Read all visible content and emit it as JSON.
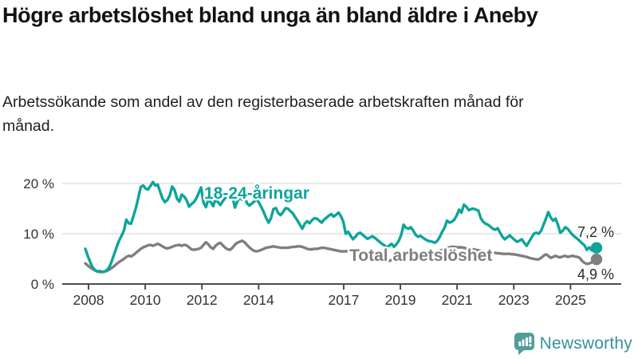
{
  "header": {
    "title": "Högre arbetslöshet bland unga än bland äldre i Aneby",
    "subtitle": "Arbetssökande som andel av den registerbaserade arbetskraften månad för månad."
  },
  "footer": {
    "brand": "Newsworthy",
    "brand_icon": "bar-chart-speech-bubble",
    "brand_icon_color": "#4f9e99",
    "brand_text_color": "#35929a"
  },
  "chart_data": {
    "type": "line",
    "title": "Högre arbetslöshet bland unga än bland äldre i Aneby",
    "subtitle": "Arbetssökande som andel av den registerbaserade arbetskraften månad för månad.",
    "x_frequency": "monthly",
    "x_start": "2008-01",
    "x_end": "2025-09",
    "x_tick_labels": [
      "2008",
      "2010",
      "2012",
      "2014",
      "2017",
      "2019",
      "2021",
      "2023",
      "2025"
    ],
    "x_tick_years": [
      2008,
      2010,
      2012,
      2014,
      2017,
      2019,
      2021,
      2023,
      2025
    ],
    "ylim": [
      0,
      21
    ],
    "yticks": [
      {
        "value": 0,
        "label": "0 %"
      },
      {
        "value": 10,
        "label": "10 %"
      },
      {
        "value": 20,
        "label": "20 %"
      }
    ],
    "grid": "horizontal",
    "legend_position": "inline-labels",
    "axis_color": "#4d4d4d",
    "grid_color": "#d9d9d9",
    "tick_text_color": "#333333",
    "end_label_color": "#2b2b2b",
    "series": [
      {
        "name": "18-24-åringar",
        "color": "#0da59a",
        "end_label": "7,2 %",
        "end_value": 7.2,
        "values": [
          7.0,
          5.6,
          4.4,
          3.3,
          2.8,
          2.5,
          2.6,
          2.4,
          2.5,
          2.8,
          3.4,
          4.6,
          6.0,
          7.4,
          8.6,
          9.6,
          10.6,
          12.8,
          12.1,
          12.0,
          13.6,
          15.2,
          17.2,
          19.3,
          19.6,
          19.0,
          18.8,
          19.5,
          20.3,
          19.6,
          19.8,
          18.4,
          17.0,
          16.3,
          16.7,
          17.6,
          19.4,
          18.7,
          17.0,
          16.4,
          17.8,
          17.4,
          16.7,
          15.4,
          15.9,
          16.3,
          17.0,
          18.1,
          19.2,
          16.2,
          15.3,
          16.8,
          16.3,
          15.5,
          16.9,
          16.3,
          15.7,
          16.5,
          17.1,
          18.3,
          18.7,
          17.5,
          15.2,
          16.4,
          17.2,
          16.8,
          17.5,
          16.1,
          15.6,
          16.0,
          16.4,
          16.9,
          16.2,
          15.3,
          14.3,
          13.1,
          12.2,
          13.1,
          14.9,
          15.1,
          14.1,
          13.7,
          14.3,
          15.1,
          15.0,
          14.5,
          14.1,
          13.3,
          12.6,
          11.8,
          11.0,
          12.0,
          12.5,
          12.1,
          12.7,
          13.1,
          13.0,
          12.6,
          12.2,
          12.8,
          13.2,
          13.6,
          13.9,
          13.4,
          13.8,
          14.2,
          13.5,
          12.4,
          10.0,
          10.4,
          9.6,
          8.9,
          9.4,
          10.0,
          10.2,
          9.8,
          9.4,
          9.0,
          9.2,
          9.5,
          9.2,
          8.8,
          8.4,
          8.0,
          7.7,
          7.3,
          7.6,
          8.0,
          7.4,
          7.9,
          8.6,
          9.8,
          11.8,
          11.2,
          11.0,
          11.3,
          10.6,
          9.8,
          9.4,
          9.6,
          9.2,
          8.9,
          8.6,
          8.5,
          8.4,
          8.2,
          8.6,
          9.4,
          10.4,
          11.2,
          12.6,
          12.2,
          12.4,
          12.8,
          13.6,
          14.8,
          14.2,
          15.8,
          15.4,
          14.7,
          14.9,
          15.0,
          14.8,
          14.6,
          13.1,
          12.4,
          12.0,
          11.8,
          11.4,
          11.0,
          10.8,
          11.1,
          10.2,
          9.4,
          8.9,
          9.3,
          9.7,
          9.2,
          8.8,
          8.4,
          8.6,
          8.9,
          8.2,
          7.6,
          8.4,
          9.2,
          10.0,
          10.2,
          10.0,
          10.6,
          11.8,
          13.0,
          14.3,
          13.2,
          12.6,
          13.0,
          11.8,
          10.2,
          10.6,
          11.3,
          11.0,
          10.4,
          9.8,
          9.4,
          9.0,
          8.6,
          8.1,
          7.7,
          6.8,
          7.3,
          6.7,
          6.9,
          7.2
        ]
      },
      {
        "name": "Total arbetslöshet",
        "color": "#7f7f7f",
        "end_label": "4,9 %",
        "end_value": 4.9,
        "values": [
          4.1,
          3.7,
          3.3,
          3.0,
          2.7,
          2.5,
          2.4,
          2.4,
          2.5,
          2.6,
          2.9,
          3.2,
          3.6,
          4.0,
          4.4,
          4.7,
          5.0,
          5.4,
          5.6,
          5.5,
          5.8,
          6.2,
          6.6,
          7.0,
          7.3,
          7.5,
          7.7,
          7.8,
          7.6,
          7.8,
          8.0,
          7.8,
          7.5,
          7.2,
          7.1,
          7.2,
          7.4,
          7.6,
          7.7,
          7.8,
          7.6,
          7.8,
          7.7,
          7.3,
          6.9,
          6.8,
          6.9,
          7.0,
          7.2,
          7.8,
          8.3,
          7.9,
          7.3,
          7.0,
          7.6,
          8.0,
          8.2,
          7.7,
          7.2,
          6.9,
          6.8,
          7.2,
          7.8,
          8.2,
          8.4,
          8.6,
          8.3,
          7.8,
          7.3,
          6.9,
          6.6,
          6.5,
          6.6,
          6.8,
          7.0,
          7.2,
          7.3,
          7.4,
          7.5,
          7.4,
          7.3,
          7.2,
          7.2,
          7.2,
          7.2,
          7.3,
          7.4,
          7.4,
          7.5,
          7.5,
          7.4,
          7.2,
          7.0,
          6.9,
          6.9,
          7.0,
          7.0,
          7.1,
          7.2,
          7.2,
          7.1,
          7.0,
          6.9,
          6.8,
          6.7,
          6.6,
          6.5,
          6.5,
          6.5,
          6.6,
          6.7,
          6.8,
          6.7,
          6.5,
          6.3,
          6.2,
          6.0,
          5.8,
          5.6,
          5.5,
          5.4,
          5.2,
          5.0,
          4.8,
          4.6,
          4.5,
          4.6,
          4.8,
          5.0,
          5.1,
          5.2,
          5.3,
          5.4,
          5.5,
          5.6,
          5.6,
          5.5,
          5.4,
          5.4,
          5.5,
          5.5,
          5.6,
          5.6,
          5.7,
          5.8,
          6.0,
          6.3,
          6.6,
          6.8,
          7.0,
          7.2,
          7.3,
          7.4,
          7.4,
          7.3,
          7.3,
          7.3,
          7.2,
          7.1,
          7.0,
          6.9,
          6.9,
          6.8,
          6.7,
          6.6,
          6.5,
          6.4,
          6.3,
          6.3,
          6.2,
          6.2,
          6.1,
          6.1,
          6.0,
          6.0,
          6.0,
          6.0,
          5.9,
          5.9,
          5.8,
          5.7,
          5.6,
          5.5,
          5.4,
          5.2,
          5.1,
          5.0,
          4.9,
          4.9,
          5.2,
          5.6,
          5.9,
          5.6,
          5.2,
          5.4,
          5.6,
          5.4,
          5.3,
          5.5,
          5.6,
          5.4,
          5.5,
          5.6,
          5.5,
          5.4,
          5.2,
          4.6,
          4.2,
          4.0,
          4.1,
          4.3,
          4.6,
          4.9
        ]
      }
    ]
  }
}
